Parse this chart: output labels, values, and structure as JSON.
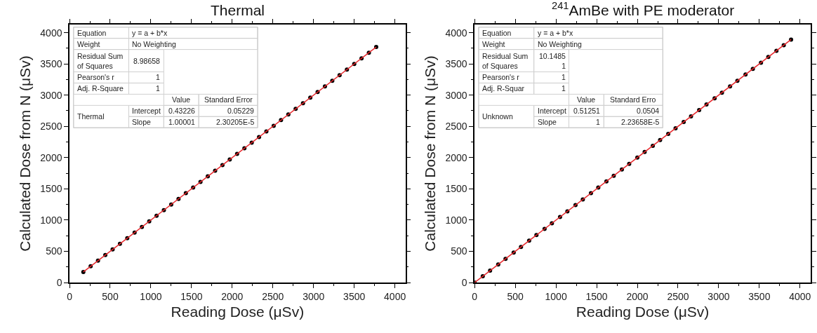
{
  "chart_data": [
    {
      "type": "scatter",
      "title": "Thermal",
      "xlabel": "Reading Dose (μSv)",
      "ylabel": "Calculated Dose from N (μSv)",
      "xlim": [
        0,
        4130
      ],
      "ylim": [
        0,
        4130
      ],
      "xticks": [
        0,
        500,
        1000,
        1500,
        2000,
        2500,
        3000,
        3500,
        4000
      ],
      "yticks": [
        0,
        500,
        1000,
        1500,
        2000,
        2500,
        3000,
        3500,
        4000
      ],
      "marker": "circle",
      "series": [
        {
          "color": "#000000",
          "x": [
            170,
            260,
            350,
            440,
            530,
            620,
            710,
            800,
            890,
            980,
            1070,
            1160,
            1250,
            1340,
            1430,
            1520,
            1610,
            1700,
            1790,
            1880,
            1970,
            2060,
            2150,
            2240,
            2330,
            2420,
            2510,
            2600,
            2690,
            2780,
            2870,
            2960,
            3050,
            3140,
            3230,
            3320,
            3410,
            3500,
            3590,
            3680,
            3770
          ],
          "values": [
            170,
            260,
            350,
            440,
            530,
            620,
            710,
            800,
            890,
            980,
            1070,
            1160,
            1250,
            1340,
            1430,
            1520,
            1610,
            1700,
            1790,
            1880,
            1970,
            2060,
            2150,
            2240,
            2330,
            2420,
            2510,
            2600,
            2690,
            2780,
            2870,
            2960,
            3050,
            3140,
            3230,
            3320,
            3410,
            3500,
            3590,
            3680,
            3770
          ]
        },
        {
          "type": "line",
          "marker": "none",
          "color": "#e8262b",
          "line_style": "solid",
          "x": [
            170,
            3770
          ],
          "values": [
            170,
            3770
          ]
        }
      ],
      "annotations": [
        "Equation",
        "y = a + b*x",
        "Weight",
        "No Weighting",
        "Residual Sum\nof Squares",
        "8.98658",
        "Pearson's r",
        "1",
        "Adj. R-Square",
        "1",
        "Value",
        "Standard Error",
        "Thermal",
        "Intercept",
        "0.43226",
        "0.05229",
        "Slope",
        "1.00001",
        "2.30205E-5"
      ]
    },
    {
      "type": "scatter",
      "title": "$^{241}$AmBe with PE moderator",
      "xlabel": "Reading Dose (μSv)",
      "ylabel": "Calculated Dose from N (μSv)",
      "xlim": [
        0,
        4130
      ],
      "ylim": [
        0,
        4130
      ],
      "xticks": [
        0,
        500,
        1000,
        1500,
        2000,
        2500,
        3000,
        3500,
        4000
      ],
      "yticks": [
        0,
        500,
        1000,
        1500,
        2000,
        2500,
        3000,
        3500,
        4000
      ],
      "marker": "circle",
      "series": [
        {
          "color": "#000000",
          "x": [
            0,
            100,
            190,
            290,
            380,
            480,
            570,
            670,
            760,
            860,
            950,
            1050,
            1140,
            1240,
            1330,
            1430,
            1520,
            1620,
            1710,
            1810,
            1900,
            2000,
            2090,
            2190,
            2280,
            2380,
            2470,
            2570,
            2660,
            2760,
            2850,
            2950,
            3040,
            3140,
            3230,
            3330,
            3420,
            3520,
            3610,
            3710,
            3800,
            3890
          ],
          "values": [
            0,
            100,
            190,
            290,
            380,
            480,
            570,
            670,
            760,
            860,
            950,
            1050,
            1140,
            1240,
            1330,
            1430,
            1520,
            1620,
            1710,
            1810,
            1900,
            2000,
            2090,
            2190,
            2280,
            2380,
            2470,
            2570,
            2660,
            2760,
            2850,
            2950,
            3040,
            3140,
            3230,
            3330,
            3420,
            3520,
            3610,
            3710,
            3800,
            3890
          ]
        },
        {
          "type": "line",
          "marker": "none",
          "color": "#e8262b",
          "line_style": "solid",
          "x": [
            0,
            3890
          ],
          "values": [
            0,
            3890
          ]
        }
      ],
      "annotations": [
        "Equation",
        "y = a + b*x",
        "Weight",
        "No Weighting",
        "Residual Sum\nof Squares",
        "10.1485\n1",
        "Pearson's r",
        "1",
        "Adj. R-Squar",
        "1",
        "Value",
        "Standard Erro",
        "Unknown",
        "Intercept",
        "0.51251",
        "0.0504",
        "Slope",
        "1",
        "2.23658E-5"
      ]
    }
  ]
}
